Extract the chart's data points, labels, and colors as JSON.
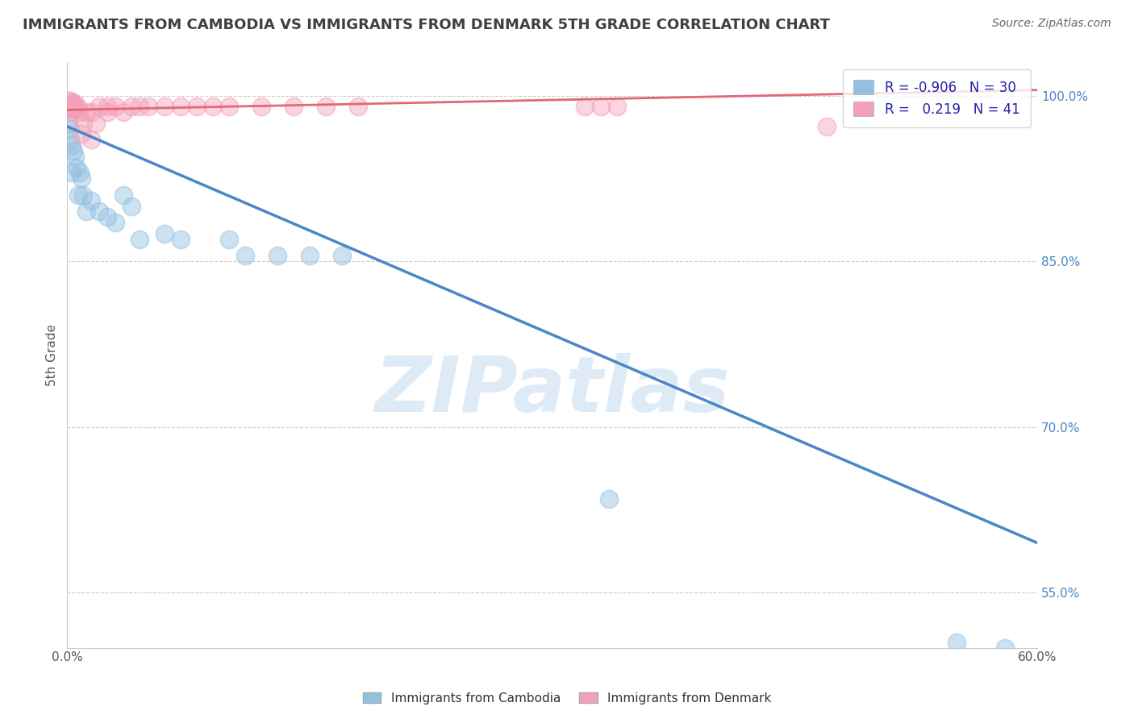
{
  "title": "IMMIGRANTS FROM CAMBODIA VS IMMIGRANTS FROM DENMARK 5TH GRADE CORRELATION CHART",
  "source_text": "Source: ZipAtlas.com",
  "ylabel": "5th Grade",
  "watermark": "ZIPatlas",
  "xlim": [
    0.0,
    0.6
  ],
  "ylim": [
    0.5,
    1.03
  ],
  "right_yticks": [
    0.55,
    0.7,
    0.85,
    1.0
  ],
  "right_yticklabels": [
    "55.0%",
    "70.0%",
    "85.0%",
    "100.0%"
  ],
  "grid_yticks": [
    0.55,
    0.7,
    0.85,
    1.0
  ],
  "blue_color": "#92c0e0",
  "pink_color": "#f4a0b8",
  "blue_line_color": "#4a86c8",
  "pink_line_color": "#e06878",
  "grid_color": "#cccccc",
  "background_color": "#ffffff",
  "title_color": "#404040",
  "source_color": "#666666",
  "watermark_color": "#c8dff0",
  "cambodia_x": [
    0.001,
    0.002,
    0.002,
    0.003,
    0.003,
    0.004,
    0.005,
    0.006,
    0.007,
    0.008,
    0.009,
    0.01,
    0.012,
    0.015,
    0.02,
    0.025,
    0.03,
    0.035,
    0.04,
    0.045,
    0.06,
    0.07,
    0.1,
    0.11,
    0.13,
    0.15,
    0.17,
    0.335,
    0.55,
    0.58
  ],
  "cambodia_y": [
    0.975,
    0.97,
    0.96,
    0.955,
    0.93,
    0.95,
    0.945,
    0.935,
    0.91,
    0.93,
    0.925,
    0.91,
    0.895,
    0.905,
    0.895,
    0.89,
    0.885,
    0.91,
    0.9,
    0.87,
    0.875,
    0.87,
    0.87,
    0.855,
    0.855,
    0.855,
    0.855,
    0.635,
    0.505,
    0.5
  ],
  "denmark_x": [
    0.001,
    0.001,
    0.001,
    0.002,
    0.002,
    0.002,
    0.003,
    0.003,
    0.004,
    0.005,
    0.005,
    0.006,
    0.007,
    0.008,
    0.009,
    0.01,
    0.012,
    0.015,
    0.015,
    0.018,
    0.02,
    0.025,
    0.025,
    0.03,
    0.035,
    0.04,
    0.045,
    0.05,
    0.06,
    0.07,
    0.08,
    0.09,
    0.1,
    0.12,
    0.14,
    0.16,
    0.18,
    0.32,
    0.33,
    0.34,
    0.47
  ],
  "denmark_y": [
    0.995,
    0.992,
    0.988,
    0.995,
    0.988,
    0.985,
    0.993,
    0.988,
    0.99,
    0.993,
    0.987,
    0.99,
    0.988,
    0.985,
    0.965,
    0.975,
    0.985,
    0.96,
    0.985,
    0.975,
    0.99,
    0.99,
    0.985,
    0.99,
    0.985,
    0.99,
    0.99,
    0.99,
    0.99,
    0.99,
    0.99,
    0.99,
    0.99,
    0.99,
    0.99,
    0.99,
    0.99,
    0.99,
    0.99,
    0.99,
    0.972
  ],
  "blue_trend_x": [
    0.0,
    0.6
  ],
  "blue_trend_y": [
    0.972,
    0.595
  ],
  "pink_trend_x": [
    0.0,
    0.6
  ],
  "pink_trend_y": [
    0.987,
    1.005
  ]
}
